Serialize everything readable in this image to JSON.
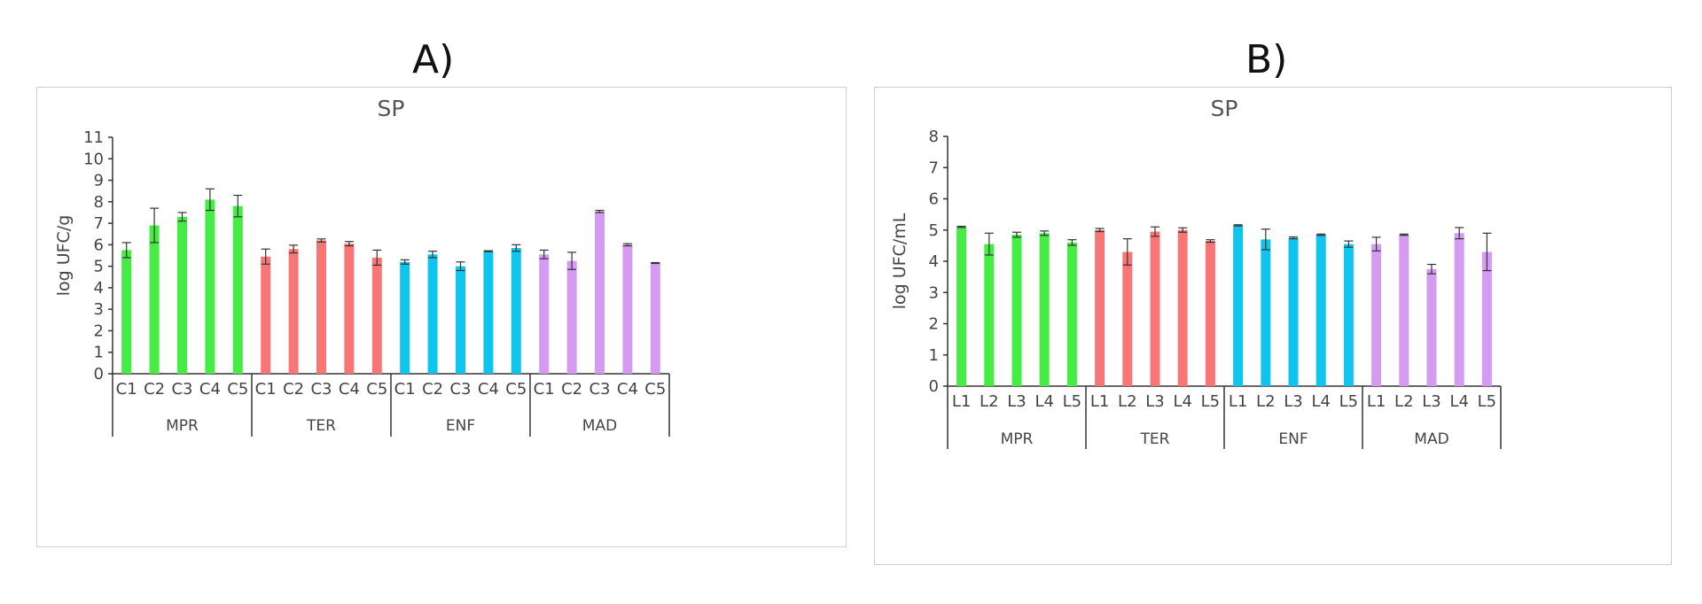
{
  "panels": {
    "a": "A)",
    "b": "B)"
  },
  "colors": {
    "MPR": "#44ec44",
    "TER": "#f87676",
    "ENF": "#10c4f0",
    "MAD": "#d59af2",
    "axis": "#333333",
    "error": "#333333"
  },
  "chart_data": [
    {
      "type": "bar",
      "title": "SP",
      "xlabel": "",
      "ylabel": "log UFC/g",
      "ylim": [
        0,
        11
      ],
      "yticks": [
        0,
        1,
        2,
        3,
        4,
        5,
        6,
        7,
        8,
        9,
        10,
        11
      ],
      "groups": [
        {
          "name": "MPR",
          "categories": [
            "C1",
            "C2",
            "C3",
            "C4",
            "C5"
          ],
          "values": [
            5.75,
            6.9,
            7.3,
            8.1,
            7.8
          ],
          "errors": [
            0.35,
            0.8,
            0.2,
            0.5,
            0.5
          ]
        },
        {
          "name": "TER",
          "categories": [
            "C1",
            "C2",
            "C3",
            "C4",
            "C5"
          ],
          "values": [
            5.45,
            5.8,
            6.2,
            6.05,
            5.4
          ],
          "errors": [
            0.35,
            0.18,
            0.07,
            0.1,
            0.35
          ]
        },
        {
          "name": "ENF",
          "categories": [
            "C1",
            "C2",
            "C3",
            "C4",
            "C5"
          ],
          "values": [
            5.2,
            5.55,
            5.0,
            5.7,
            5.85
          ],
          "errors": [
            0.1,
            0.15,
            0.2,
            0.02,
            0.15
          ]
        },
        {
          "name": "MAD",
          "categories": [
            "C1",
            "C2",
            "C3",
            "C4",
            "C5"
          ],
          "values": [
            5.55,
            5.25,
            7.55,
            6.0,
            5.15
          ],
          "errors": [
            0.2,
            0.4,
            0.05,
            0.05,
            0.02
          ]
        }
      ]
    },
    {
      "type": "bar",
      "title": "SP",
      "xlabel": "",
      "ylabel": "log UFC/mL",
      "ylim": [
        0,
        8
      ],
      "yticks": [
        0,
        1,
        2,
        3,
        4,
        5,
        6,
        7,
        8
      ],
      "groups": [
        {
          "name": "MPR",
          "categories": [
            "L1",
            "L2",
            "L3",
            "L4",
            "L5"
          ],
          "values": [
            5.1,
            4.55,
            4.85,
            4.9,
            4.6
          ],
          "errors": [
            0.02,
            0.35,
            0.08,
            0.07,
            0.09
          ]
        },
        {
          "name": "TER",
          "categories": [
            "L1",
            "L2",
            "L3",
            "L4",
            "L5"
          ],
          "values": [
            5.0,
            4.3,
            4.95,
            5.0,
            4.65
          ],
          "errors": [
            0.05,
            0.42,
            0.15,
            0.07,
            0.04
          ]
        },
        {
          "name": "ENF",
          "categories": [
            "L1",
            "L2",
            "L3",
            "L4",
            "L5"
          ],
          "values": [
            5.15,
            4.7,
            4.75,
            4.85,
            4.55
          ],
          "errors": [
            0.02,
            0.33,
            0.03,
            0.02,
            0.1
          ]
        },
        {
          "name": "MAD",
          "categories": [
            "L1",
            "L2",
            "L3",
            "L4",
            "L5"
          ],
          "values": [
            4.55,
            4.85,
            3.75,
            4.9,
            4.3
          ],
          "errors": [
            0.22,
            0.02,
            0.15,
            0.18,
            0.6
          ]
        }
      ]
    }
  ]
}
